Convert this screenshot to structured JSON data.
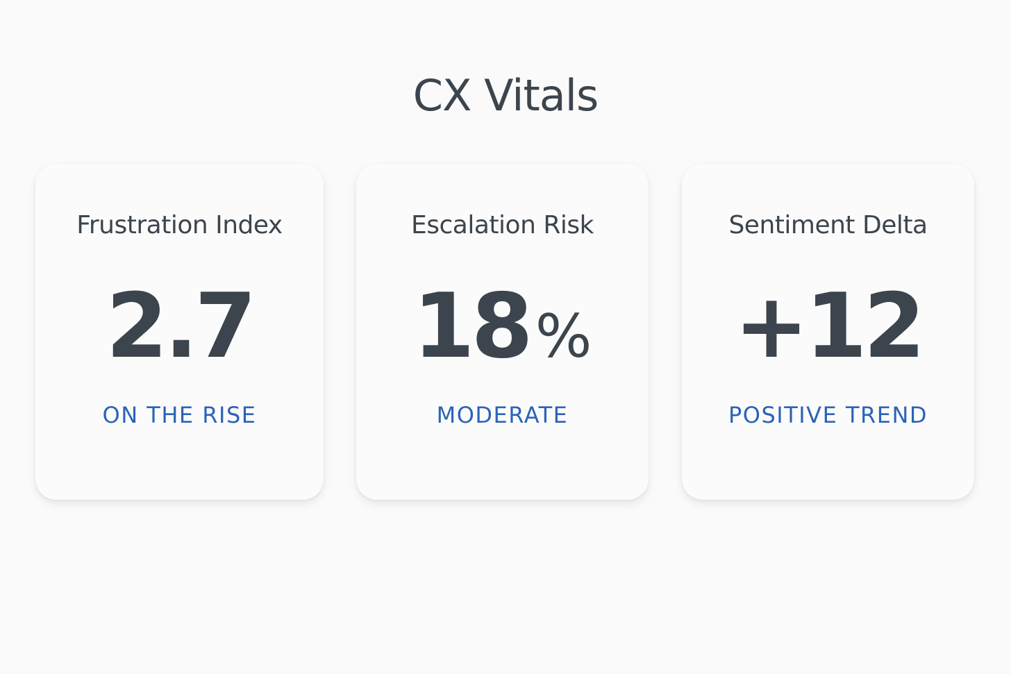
{
  "header": {
    "title": "CX Vitals"
  },
  "cards": [
    {
      "title": "Frustration Index",
      "value": "2.7",
      "unit": "",
      "status": "ON THE RISE"
    },
    {
      "title": "Escalation Risk",
      "value": "18",
      "unit": "%",
      "status": "MODERATE"
    },
    {
      "title": "Sentiment Delta",
      "value": "+12",
      "unit": "",
      "status": "POSITIVE TREND"
    }
  ],
  "colors": {
    "background": "#fafafa",
    "card": "#fbfbfb",
    "text": "#3c454d",
    "accent": "#2b63b8"
  }
}
